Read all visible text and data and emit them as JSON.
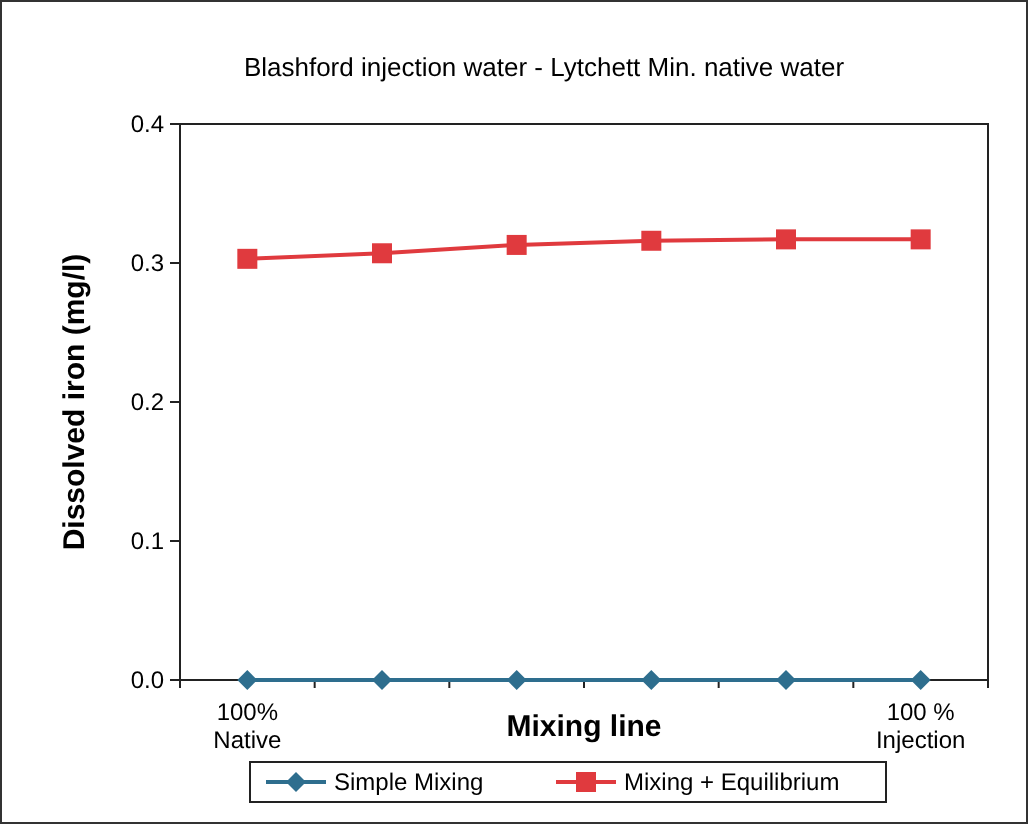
{
  "chart_data": {
    "type": "line",
    "title": "Blashford injection water - Lytchett Min.  native water",
    "xlabel": "Mixing line",
    "ylabel": "Dissolved iron (mg/l)",
    "categories": [
      "100%\nNative",
      null,
      null,
      null,
      null,
      "100 %\nInjection"
    ],
    "series": [
      {
        "name": "Simple Mixing",
        "color": "#2e6e8e",
        "marker": "diamond",
        "values": [
          0,
          0,
          0,
          0,
          0,
          0
        ]
      },
      {
        "name": "Mixing + Equilibrium",
        "color": "#e03a3e",
        "marker": "square",
        "values": [
          0.303,
          0.307,
          0.313,
          0.316,
          0.317,
          0.317
        ]
      }
    ],
    "ylim": [
      0,
      0.4
    ],
    "yticks": [
      {
        "value": 0,
        "label": "0.0"
      },
      {
        "value": 0.1,
        "label": "0.1"
      },
      {
        "value": 0.2,
        "label": "0.2"
      },
      {
        "value": 0.3,
        "label": "0.3"
      },
      {
        "value": 0.4,
        "label": "0.4"
      }
    ],
    "grid": false,
    "legend": "bottom"
  }
}
